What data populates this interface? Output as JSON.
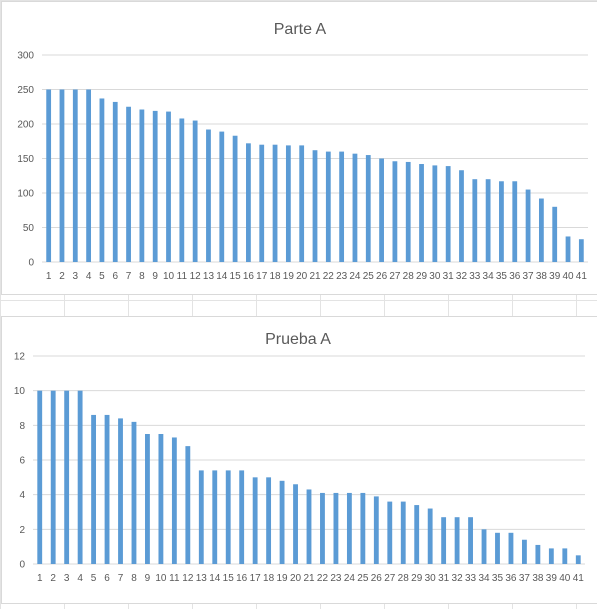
{
  "chart_data": [
    {
      "type": "bar",
      "title": "Parte A",
      "xlabel": "",
      "ylabel": "",
      "categories": [
        "1",
        "2",
        "3",
        "4",
        "5",
        "6",
        "7",
        "8",
        "9",
        "10",
        "11",
        "12",
        "13",
        "14",
        "15",
        "16",
        "17",
        "18",
        "19",
        "20",
        "21",
        "22",
        "23",
        "24",
        "25",
        "26",
        "27",
        "28",
        "29",
        "30",
        "31",
        "32",
        "33",
        "34",
        "35",
        "36",
        "37",
        "38",
        "39",
        "40",
        "41"
      ],
      "values": [
        250,
        250,
        250,
        250,
        237,
        232,
        225,
        221,
        219,
        218,
        208,
        205,
        192,
        189,
        183,
        172,
        170,
        170,
        169,
        169,
        162,
        160,
        160,
        157,
        155,
        150,
        146,
        145,
        142,
        140,
        139,
        133,
        120,
        120,
        117,
        117,
        105,
        92,
        80,
        37,
        33
      ],
      "ylim": [
        0,
        300
      ],
      "yticks": [
        0,
        50,
        100,
        150,
        200,
        250,
        300
      ],
      "grid": true,
      "bar_color": "#5b9bd5"
    },
    {
      "type": "bar",
      "title": "Prueba A",
      "xlabel": "",
      "ylabel": "",
      "categories": [
        "1",
        "2",
        "3",
        "4",
        "5",
        "6",
        "7",
        "8",
        "9",
        "10",
        "11",
        "12",
        "13",
        "14",
        "15",
        "16",
        "17",
        "18",
        "19",
        "20",
        "21",
        "22",
        "23",
        "24",
        "25",
        "26",
        "27",
        "28",
        "29",
        "30",
        "31",
        "32",
        "33",
        "34",
        "35",
        "36",
        "37",
        "38",
        "39",
        "40",
        "41"
      ],
      "values": [
        10,
        10,
        10,
        10,
        8.6,
        8.6,
        8.4,
        8.2,
        7.5,
        7.5,
        7.3,
        6.8,
        5.4,
        5.4,
        5.4,
        5.4,
        5.0,
        5.0,
        4.8,
        4.6,
        4.3,
        4.1,
        4.1,
        4.1,
        4.1,
        3.9,
        3.6,
        3.6,
        3.4,
        3.2,
        2.7,
        2.7,
        2.7,
        2.0,
        1.8,
        1.8,
        1.4,
        1.1,
        0.9,
        0.9,
        0.5
      ],
      "ylim": [
        0,
        12
      ],
      "yticks": [
        0,
        2,
        4,
        6,
        8,
        10,
        12
      ],
      "grid": true,
      "bar_color": "#5b9bd5"
    }
  ],
  "colors": {
    "bar": "#5b9bd5",
    "gridline": "#d9d9d9",
    "text": "#595959"
  }
}
